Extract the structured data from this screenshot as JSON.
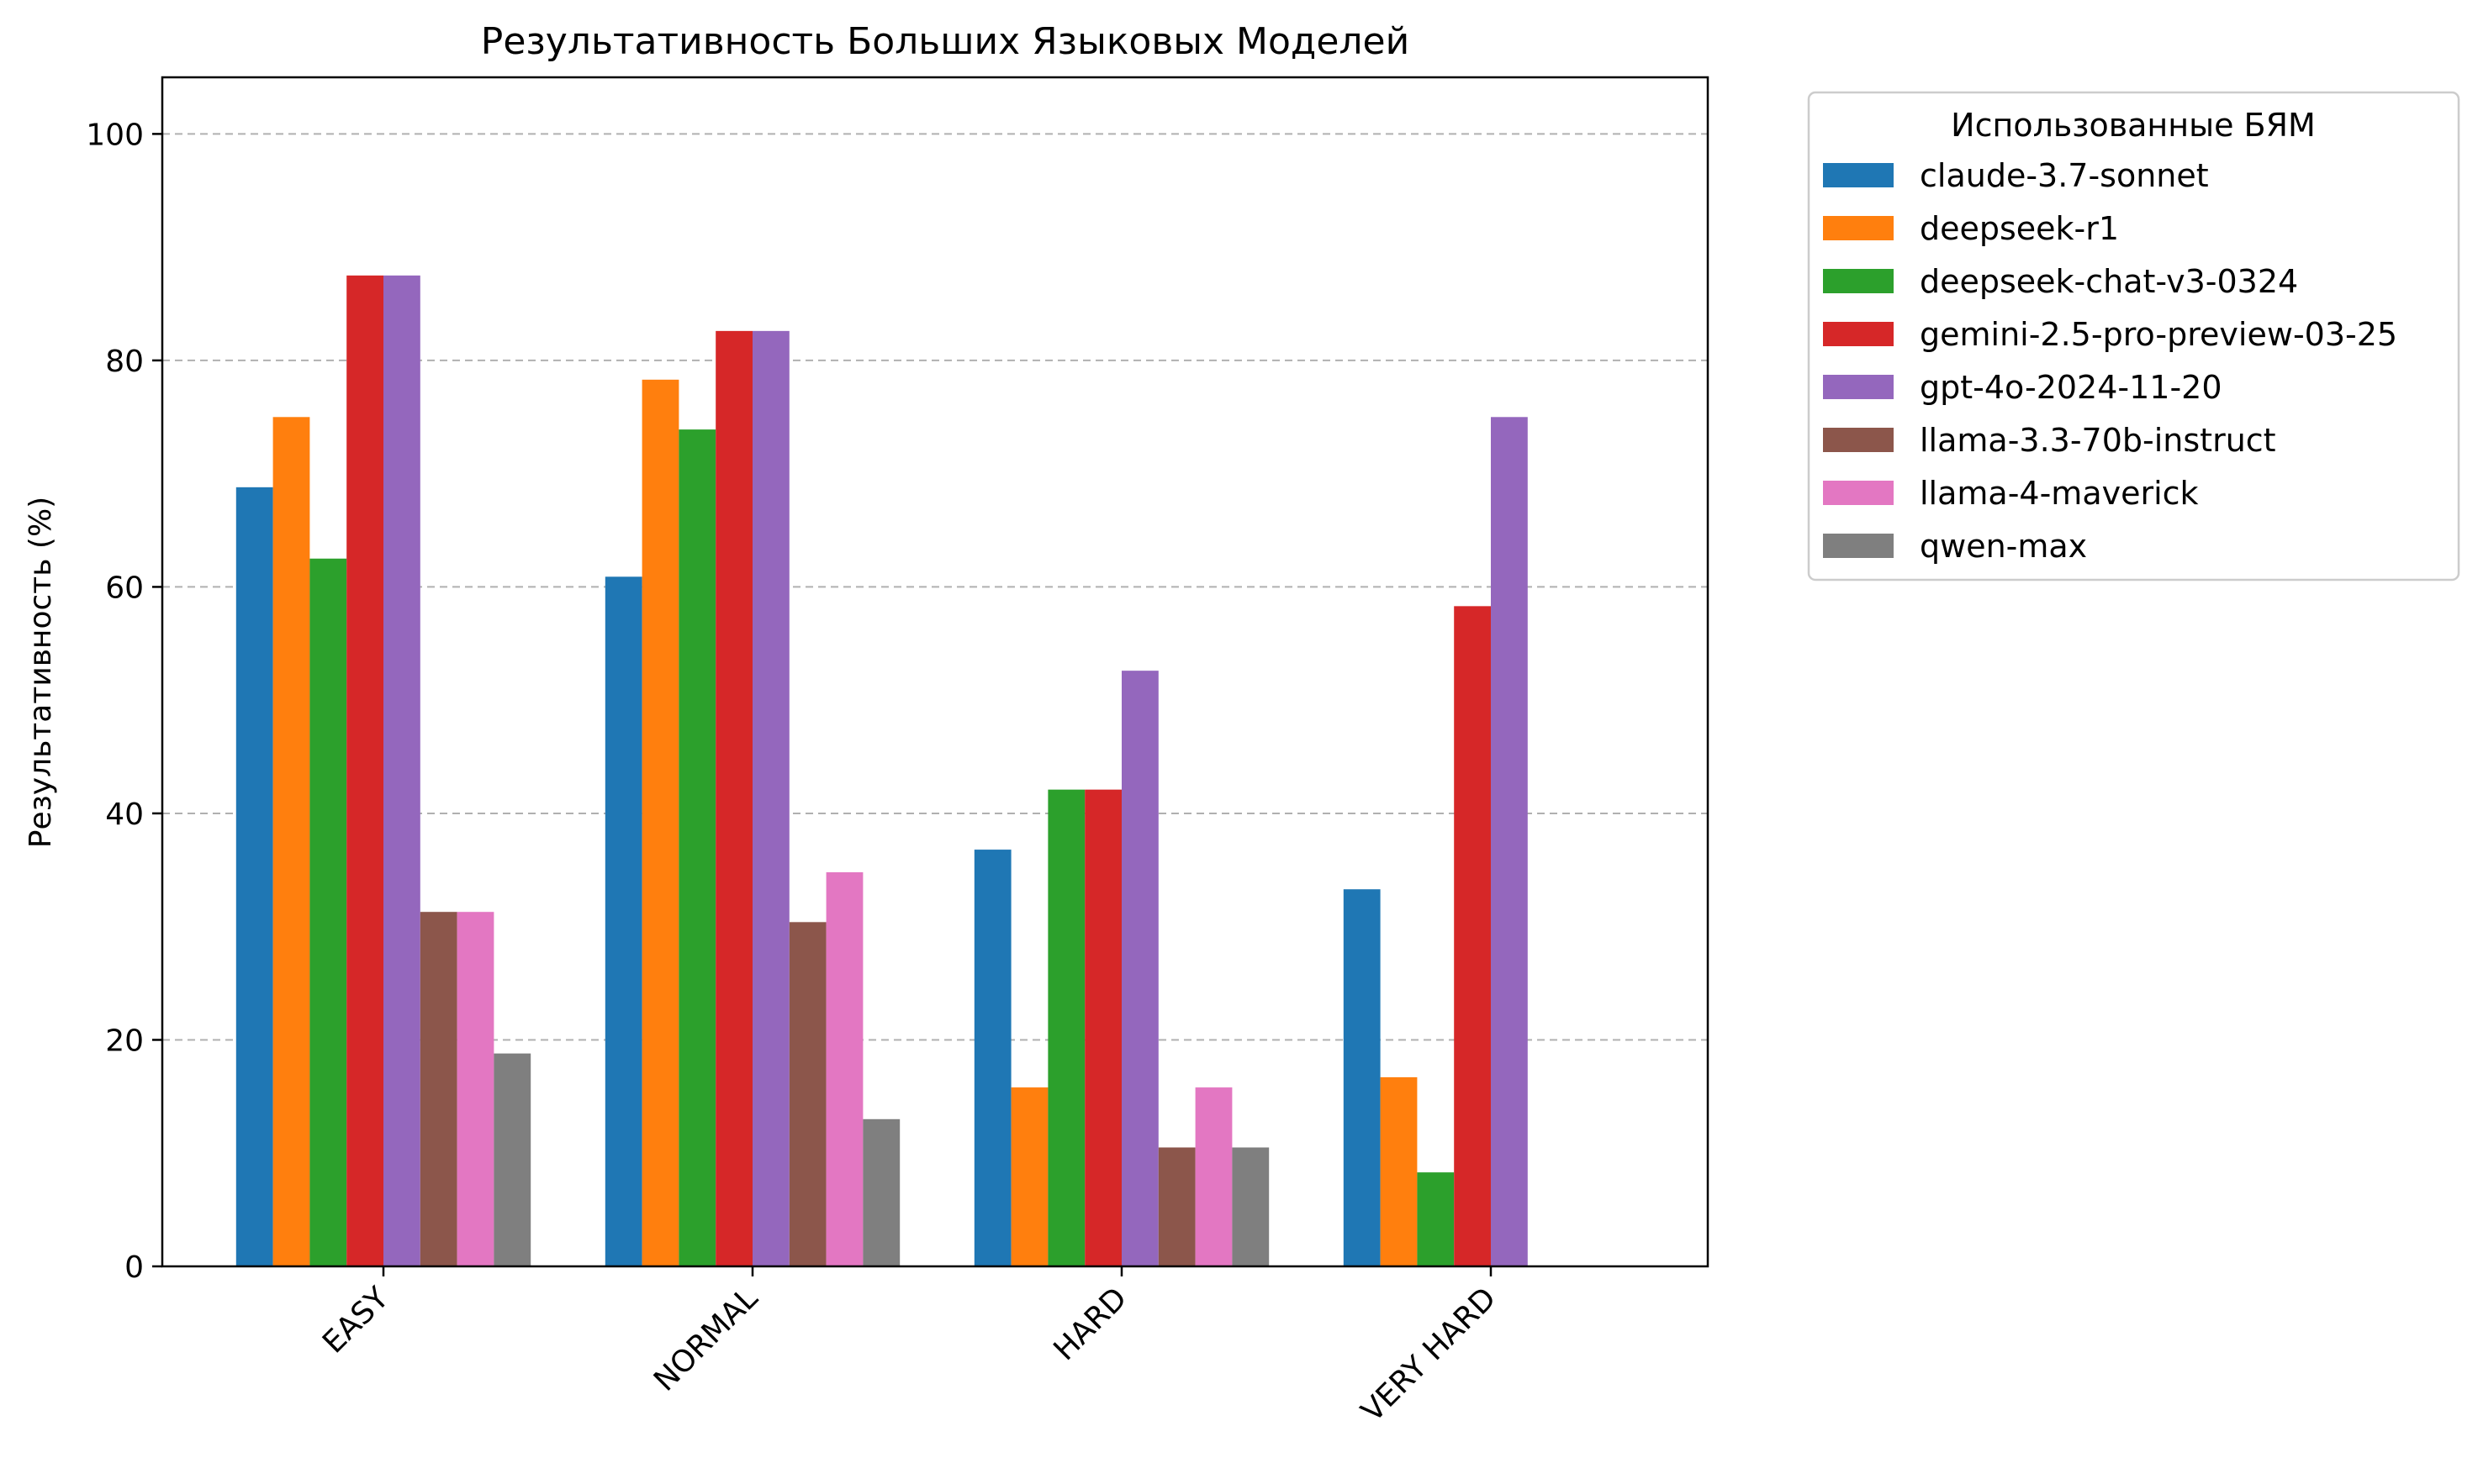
{
  "chart_data": {
    "type": "bar",
    "title": "Результативность Больших Языковых Моделей",
    "xlabel": "",
    "ylabel": "Результативность (%)",
    "ylim": [
      0,
      105
    ],
    "yticks": [
      0,
      20,
      40,
      60,
      80,
      100
    ],
    "grid": "y-dashed",
    "legend_title": "Использованные БЯМ",
    "legend_placement": "outside-top-right",
    "categories": [
      "EASY",
      "NORMAL",
      "HARD",
      "VERY HARD"
    ],
    "series": [
      {
        "name": "claude-3.7-sonnet",
        "color": "#1f77b4",
        "values": [
          68.8,
          60.9,
          36.8,
          33.3
        ]
      },
      {
        "name": "deepseek-r1",
        "color": "#ff7f0e",
        "values": [
          75.0,
          78.3,
          15.8,
          16.7
        ]
      },
      {
        "name": "deepseek-chat-v3-0324",
        "color": "#2ca02c",
        "values": [
          62.5,
          73.9,
          42.1,
          8.3
        ]
      },
      {
        "name": "gemini-2.5-pro-preview-03-25",
        "color": "#d62728",
        "values": [
          87.5,
          82.6,
          42.1,
          58.3
        ]
      },
      {
        "name": "gpt-4o-2024-11-20",
        "color": "#9467bd",
        "values": [
          87.5,
          82.6,
          52.6,
          75.0
        ]
      },
      {
        "name": "llama-3.3-70b-instruct",
        "color": "#8c564b",
        "values": [
          31.3,
          30.4,
          10.5,
          0
        ]
      },
      {
        "name": "llama-4-maverick",
        "color": "#e377c2",
        "values": [
          31.3,
          34.8,
          15.8,
          0
        ]
      },
      {
        "name": "qwen-max",
        "color": "#7f7f7f",
        "values": [
          18.8,
          13.0,
          10.5,
          0
        ]
      }
    ]
  }
}
